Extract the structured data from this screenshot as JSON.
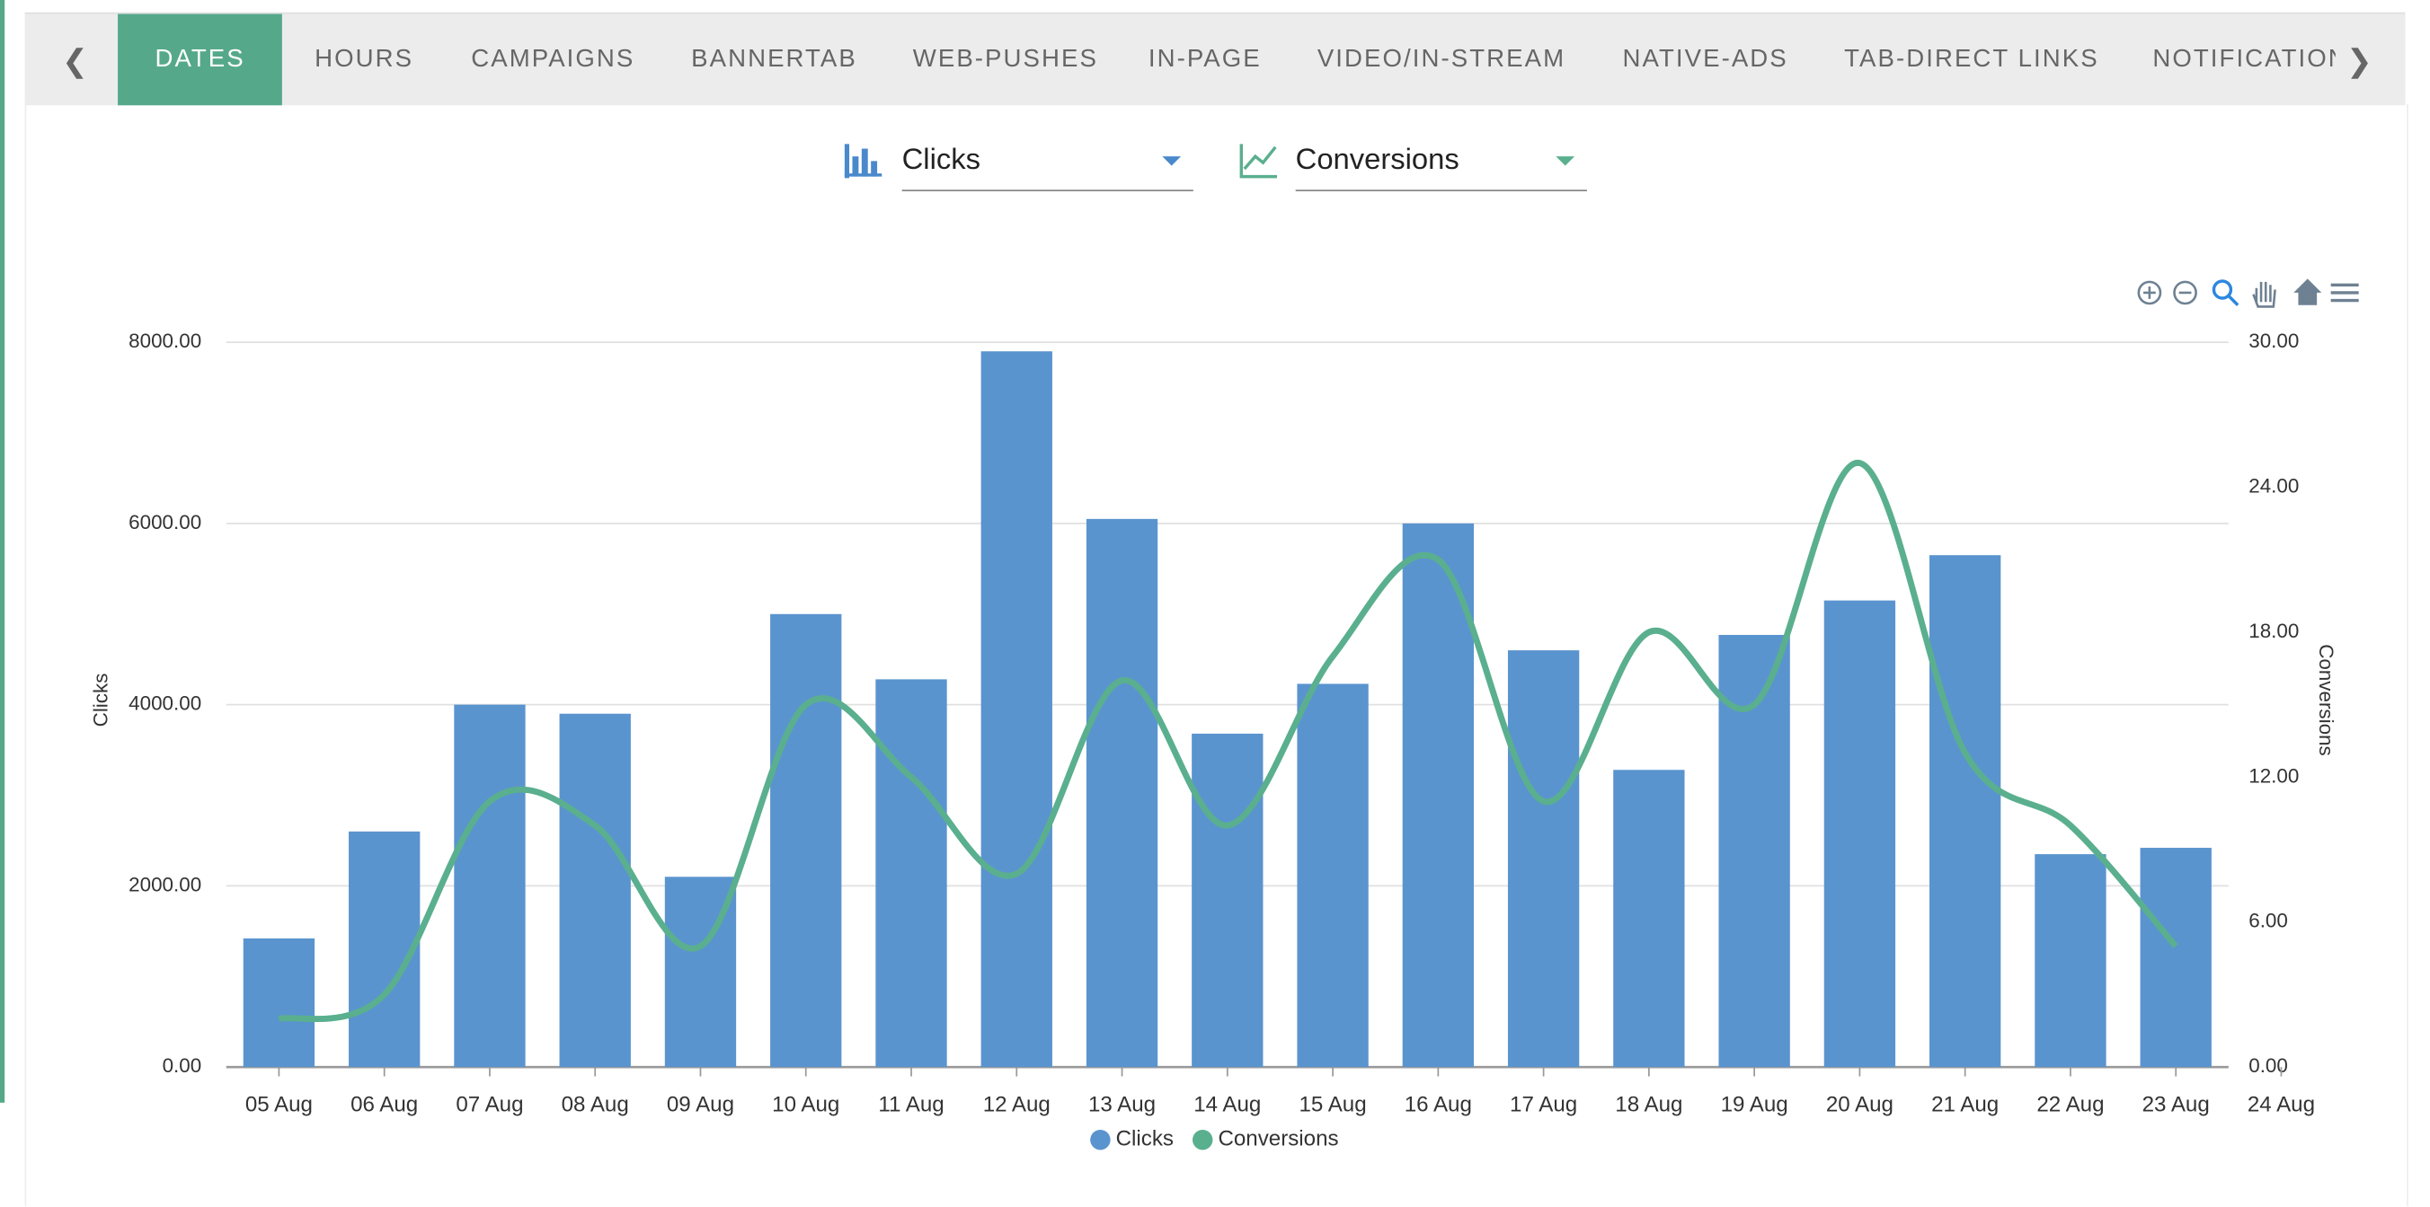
{
  "tabs": [
    "DATES",
    "HOURS",
    "CAMPAIGNS",
    "BANNERTAB",
    "WEB-PUSHES",
    "IN-PAGE",
    "VIDEO/IN-STREAM",
    "NATIVE-ADS",
    "TAB-DIRECT LINKS",
    "NOTIFICATIONS"
  ],
  "selectors": {
    "bar_metric": "Clicks",
    "line_metric": "Conversions"
  },
  "chart_data": {
    "type": "bar",
    "categories": [
      "05 Aug",
      "06 Aug",
      "07 Aug",
      "08 Aug",
      "09 Aug",
      "10 Aug",
      "11 Aug",
      "12 Aug",
      "13 Aug",
      "14 Aug",
      "15 Aug",
      "16 Aug",
      "17 Aug",
      "18 Aug",
      "19 Aug",
      "20 Aug",
      "21 Aug",
      "22 Aug",
      "23 Aug",
      "24 Aug"
    ],
    "series": [
      {
        "name": "Clicks",
        "color": "#5a94cf",
        "values": [
          1420,
          2600,
          4000,
          3900,
          2100,
          5000,
          4280,
          7900,
          6050,
          3680,
          4230,
          6000,
          4600,
          3280,
          4770,
          5150,
          5650,
          2350,
          2420,
          null
        ]
      },
      {
        "name": "Conversions",
        "color": "#5aaf8e",
        "type": "line",
        "axis": "y2",
        "values": [
          2,
          3,
          11,
          10,
          5,
          15,
          12,
          8,
          16,
          10,
          17,
          21,
          11,
          18,
          15,
          25,
          13,
          10,
          5,
          null
        ]
      }
    ],
    "ylabel": "Clicks",
    "y2label": "Conversions",
    "ylim": [
      0,
      8000
    ],
    "yticks": [
      {
        "value": 0,
        "label": "0.00"
      },
      {
        "value": 2000,
        "label": "2000.00"
      },
      {
        "value": 4000,
        "label": "4000.00"
      },
      {
        "value": 6000,
        "label": "6000.00"
      },
      {
        "value": 8000,
        "label": "8000.00"
      }
    ],
    "y2lim": [
      0,
      30
    ],
    "y2ticks": [
      {
        "value": 0,
        "label": "0.00"
      },
      {
        "value": 6,
        "label": "6.00"
      },
      {
        "value": 12,
        "label": "12.00"
      },
      {
        "value": 18,
        "label": "18.00"
      },
      {
        "value": 24,
        "label": "24.00"
      },
      {
        "value": 30,
        "label": "30.00"
      }
    ],
    "grid": true,
    "legend": "bottom"
  }
}
